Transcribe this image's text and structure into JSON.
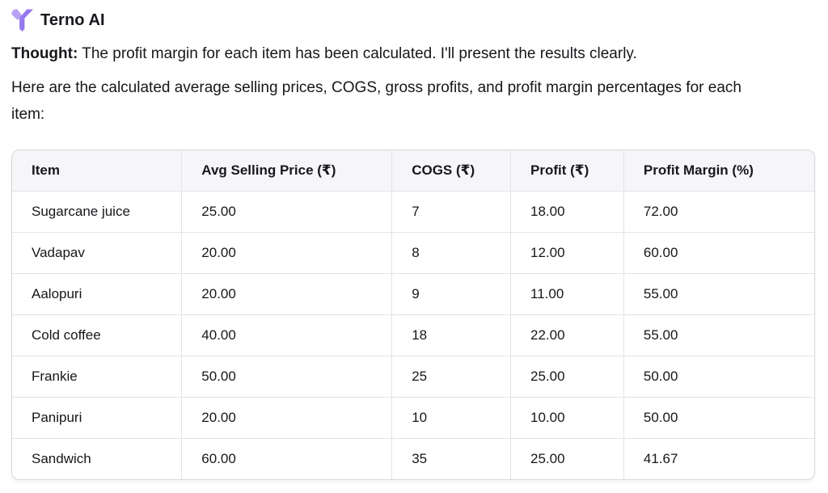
{
  "header": {
    "app_name": "Terno AI",
    "logo_icon": "terno-y-bird-icon",
    "logo_colors": {
      "light": "#b9a2f6",
      "dark": "#9678ee"
    }
  },
  "thought": {
    "label": "Thought:",
    "text": " The profit margin for each item has been calculated. I'll present the results clearly."
  },
  "intro_text": "Here are the calculated average selling prices, COGS, gross profits, and profit margin percentages for each item:",
  "table": {
    "columns": [
      "Item",
      "Avg Selling Price (₹)",
      "COGS (₹)",
      "Profit (₹)",
      "Profit Margin (%)"
    ],
    "rows": [
      [
        "Sugarcane juice",
        "25.00",
        "7",
        "18.00",
        "72.00"
      ],
      [
        "Vadapav",
        "20.00",
        "8",
        "12.00",
        "60.00"
      ],
      [
        "Aalopuri",
        "20.00",
        "9",
        "11.00",
        "55.00"
      ],
      [
        "Cold coffee",
        "40.00",
        "18",
        "22.00",
        "55.00"
      ],
      [
        "Frankie",
        "50.00",
        "25",
        "25.00",
        "50.00"
      ],
      [
        "Panipuri",
        "20.00",
        "10",
        "10.00",
        "50.00"
      ],
      [
        "Sandwich",
        "60.00",
        "35",
        "25.00",
        "41.67"
      ]
    ]
  },
  "colors": {
    "text": "#17171c",
    "table_header_bg": "#f6f6f8",
    "table_border_outer": "#d7d7dc",
    "table_border_inner": "#e4e4e9",
    "background": "#ffffff"
  }
}
